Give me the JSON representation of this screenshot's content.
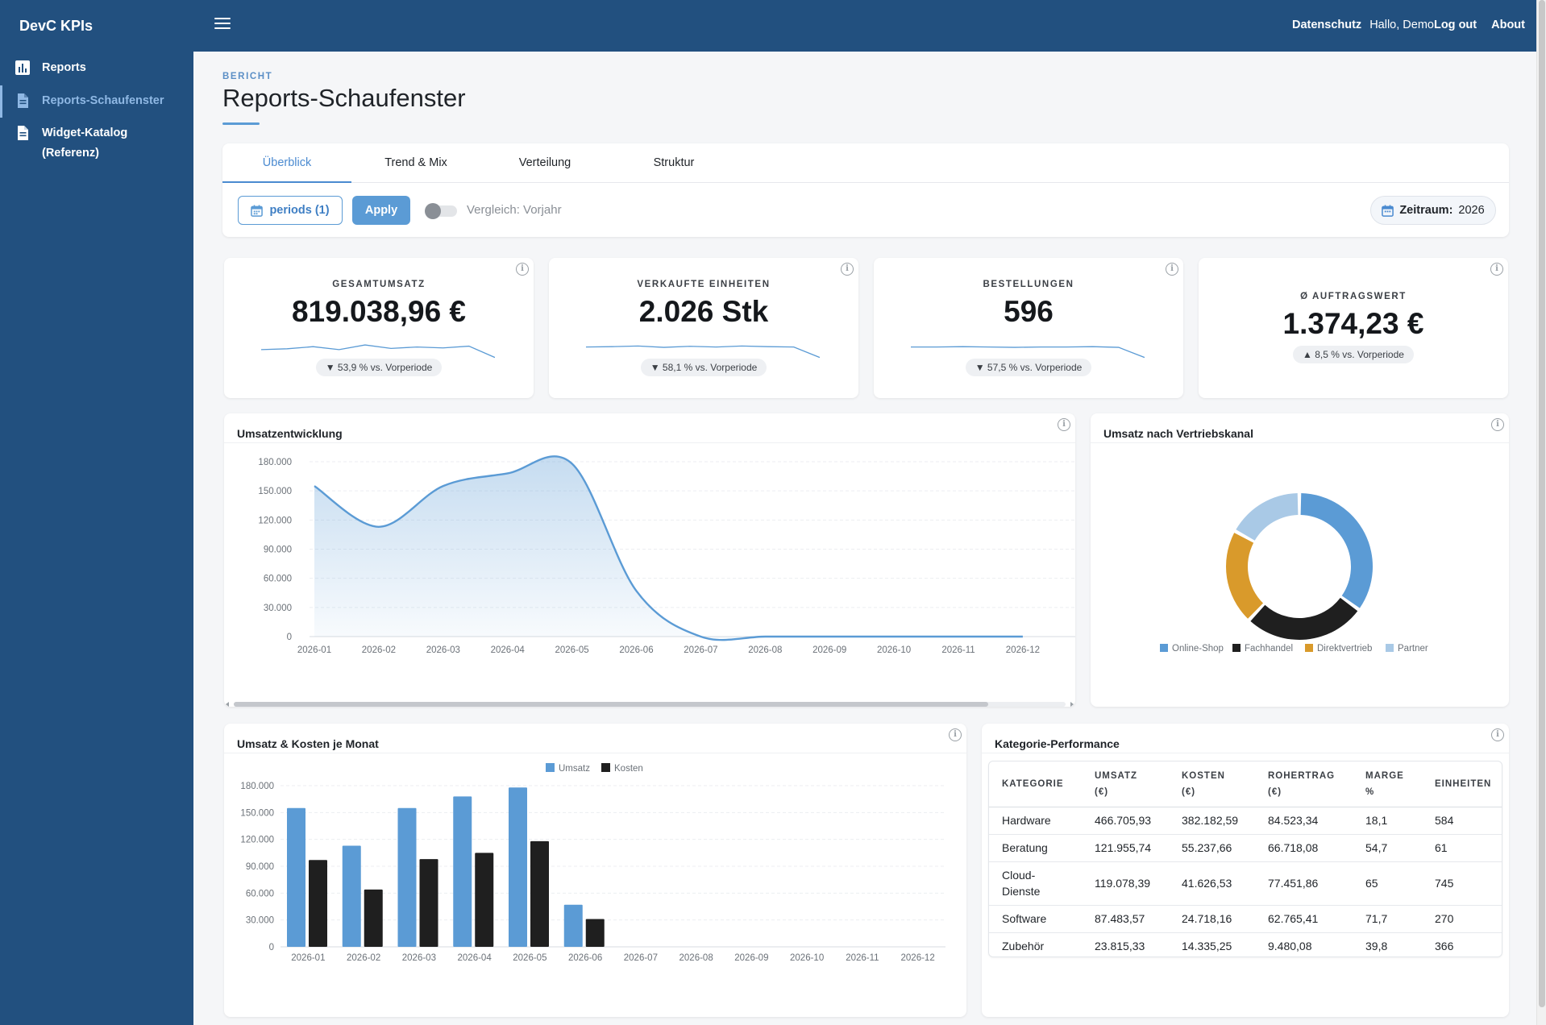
{
  "app": {
    "brand": "DevC KPIs"
  },
  "sidebar": {
    "items": [
      {
        "label": "Reports",
        "icon": "bar-chart-icon"
      },
      {
        "label": "Reports-Schaufenster",
        "icon": "document-icon",
        "active": true
      },
      {
        "label": "Widget-Katalog (Referenz)",
        "line1": "Widget-Katalog",
        "line2": "(Referenz)",
        "icon": "document-icon"
      }
    ]
  },
  "topbar": {
    "datenschutz": "Datenschutz",
    "greeting": "Hallo, Demo",
    "logout": "Log out",
    "about": "About"
  },
  "header": {
    "eyebrow": "BERICHT",
    "title": "Reports-Schaufenster"
  },
  "tabs": [
    {
      "label": "Überblick",
      "active": true
    },
    {
      "label": "Trend & Mix"
    },
    {
      "label": "Verteilung"
    },
    {
      "label": "Struktur"
    }
  ],
  "filters": {
    "periods_label": "periods (1)",
    "apply_label": "Apply",
    "compare_label": "Vergleich: Vorjahr",
    "compare_enabled": false,
    "zeitraum_label": "Zeitraum:",
    "zeitraum_value": "2026"
  },
  "kpis": [
    {
      "label": "GESAMTUMSATZ",
      "value": "819.038,96 €",
      "delta": "▼ 53,9 % vs. Vorperiode",
      "spark": [
        0.45,
        0.5,
        0.62,
        0.45,
        0.72,
        0.52,
        0.6,
        0.55,
        0.65,
        0
      ]
    },
    {
      "label": "VERKAUFTE EINHEITEN",
      "value": "2.026 Stk",
      "delta": "▼ 58,1 % vs. Vorperiode",
      "spark": [
        0.6,
        0.62,
        0.66,
        0.58,
        0.64,
        0.6,
        0.66,
        0.62,
        0.6,
        0
      ]
    },
    {
      "label": "BESTELLUNGEN",
      "value": "596",
      "delta": "▼ 57,5 % vs. Vorperiode",
      "spark": [
        0.6,
        0.6,
        0.62,
        0.6,
        0.58,
        0.6,
        0.6,
        0.62,
        0.58,
        0
      ]
    },
    {
      "label": "Ø AUFTRAGSWERT",
      "value": "1.374,23 €",
      "delta": "▲ 8,5 % vs. Vorperiode"
    }
  ],
  "panels": {
    "trend_title": "Umsatzentwicklung",
    "channel_title": "Umsatz nach Vertriebskanal",
    "bars_title": "Umsatz & Kosten je Monat",
    "table_title": "Kategorie-Performance"
  },
  "chart_data": [
    {
      "type": "area",
      "title": "Umsatzentwicklung",
      "categories": [
        "2026-01",
        "2026-02",
        "2026-03",
        "2026-04",
        "2026-05",
        "2026-06",
        "2026-07",
        "2026-08",
        "2026-09",
        "2026-10",
        "2026-11",
        "2026-12"
      ],
      "values": [
        155000,
        113000,
        155000,
        168000,
        178000,
        47000,
        0,
        0,
        0,
        0,
        0,
        0
      ],
      "ylim": [
        0,
        180000
      ],
      "yticks": [
        "0",
        "30.000",
        "60.000",
        "90.000",
        "120.000",
        "150.000",
        "180.000"
      ],
      "color": "#5b9bd5",
      "grid": true
    },
    {
      "type": "pie",
      "title": "Umsatz nach Vertriebskanal",
      "donut": true,
      "categories": [
        "Online-Shop",
        "Fachhandel",
        "Direktvertrieb",
        "Partner"
      ],
      "values": [
        35,
        27,
        21,
        17
      ],
      "colors": [
        "#5b9bd5",
        "#1f1f1f",
        "#d99a2b",
        "#a9c9e6"
      ],
      "legend": "bottom"
    },
    {
      "type": "bar",
      "title": "Umsatz & Kosten je Monat",
      "categories": [
        "2026-01",
        "2026-02",
        "2026-03",
        "2026-04",
        "2026-05",
        "2026-06",
        "2026-07",
        "2026-08",
        "2026-09",
        "2026-10",
        "2026-11",
        "2026-12"
      ],
      "series": [
        {
          "name": "Umsatz",
          "color": "#5b9bd5",
          "values": [
            155000,
            113000,
            155000,
            168000,
            178000,
            47000,
            0,
            0,
            0,
            0,
            0,
            0
          ]
        },
        {
          "name": "Kosten",
          "color": "#1f1f1f",
          "values": [
            97000,
            64000,
            98000,
            105000,
            118000,
            31000,
            0,
            0,
            0,
            0,
            0,
            0
          ]
        }
      ],
      "ylim": [
        0,
        180000
      ],
      "yticks": [
        "0",
        "30.000",
        "60.000",
        "90.000",
        "120.000",
        "150.000",
        "180.000"
      ],
      "legend": "top",
      "grid": true
    }
  ],
  "table": {
    "headers": [
      {
        "l1": "KATEGORIE",
        "l2": ""
      },
      {
        "l1": "UMSATZ",
        "l2": "(€)"
      },
      {
        "l1": "KOSTEN",
        "l2": "(€)"
      },
      {
        "l1": "ROHERTRAG",
        "l2": "(€)"
      },
      {
        "l1": "MARGE",
        "l2": "%"
      },
      {
        "l1": "EINHEITEN",
        "l2": ""
      }
    ],
    "rows": [
      {
        "kategorie": "Hardware",
        "umsatz": "466.705,93",
        "kosten": "382.182,59",
        "rohertrag": "84.523,34",
        "marge": "18,1",
        "einheiten": "584"
      },
      {
        "kategorie": "Beratung",
        "umsatz": "121.955,74",
        "kosten": "55.237,66",
        "rohertrag": "66.718,08",
        "marge": "54,7",
        "einheiten": "61"
      },
      {
        "kategorie": "Cloud-Dienste",
        "kat1": "Cloud-",
        "kat2": "Dienste",
        "umsatz": "119.078,39",
        "kosten": "41.626,53",
        "rohertrag": "77.451,86",
        "marge": "65",
        "einheiten": "745"
      },
      {
        "kategorie": "Software",
        "umsatz": "87.483,57",
        "kosten": "24.718,16",
        "rohertrag": "62.765,41",
        "marge": "71,7",
        "einheiten": "270"
      },
      {
        "kategorie": "Zubehör",
        "umsatz": "23.815,33",
        "kosten": "14.335,25",
        "rohertrag": "9.480,08",
        "marge": "39,8",
        "einheiten": "366"
      }
    ]
  }
}
